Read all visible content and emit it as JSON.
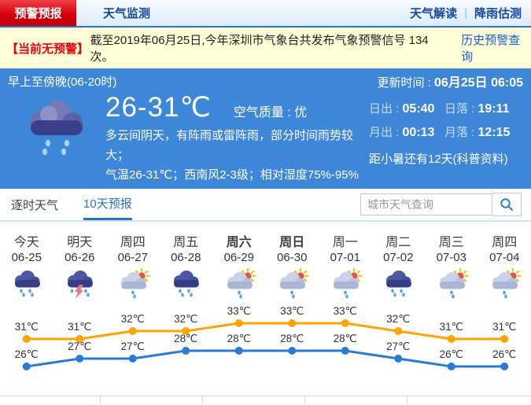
{
  "header": {
    "tabs": [
      {
        "label": "预警预报",
        "active": true
      },
      {
        "label": "天气监测",
        "active": false
      }
    ],
    "links": [
      "天气解读",
      "降雨估测"
    ]
  },
  "alert_banner": {
    "badge": "【当前无预警】",
    "text": "截至2019年06月25日,今年深圳市气象台共发布气象预警信号 134 次。",
    "link": "历史预警查询"
  },
  "current": {
    "period": "早上至傍晚(06-20时)",
    "update_label": "更新时间 : ",
    "update_time": "06月25日 06:05",
    "temp_range": "26-31℃",
    "air_quality": "空气质量 :  优",
    "desc_line1": "多云间阴天，有阵雨或雷阵雨，部分时间雨势较大；",
    "desc_line2": "气温26-31℃；西南风2-3级；相对湿度75%-95%",
    "sun_moon": [
      {
        "label": "日出 : ",
        "value": "05:40"
      },
      {
        "label": "日落 : ",
        "value": "19:11"
      },
      {
        "label": "月出 : ",
        "value": "00:13"
      },
      {
        "label": "月落 : ",
        "value": "12:15"
      }
    ],
    "solar_term_note": "距小暑还有12天(科普资料)"
  },
  "forecast_tabs": {
    "items": [
      {
        "label": "逐时天气",
        "active": false
      },
      {
        "label": "10天预报",
        "active": true
      }
    ]
  },
  "search": {
    "placeholder": "城市天气查询"
  },
  "chart_data": {
    "type": "line",
    "title": "10天预报 temperature trend",
    "unit": "℃",
    "days": [
      {
        "label": "今天",
        "date": "06-25",
        "icon": "rain",
        "bold": false
      },
      {
        "label": "明天",
        "date": "06-26",
        "icon": "thunder-rain",
        "bold": false
      },
      {
        "label": "周四",
        "date": "06-27",
        "icon": "sun-rain",
        "bold": false
      },
      {
        "label": "周五",
        "date": "06-28",
        "icon": "rain",
        "bold": false
      },
      {
        "label": "周六",
        "date": "06-29",
        "icon": "sun-rain",
        "bold": true
      },
      {
        "label": "周日",
        "date": "06-30",
        "icon": "sun-rain",
        "bold": true
      },
      {
        "label": "周一",
        "date": "07-01",
        "icon": "sun-rain",
        "bold": false
      },
      {
        "label": "周二",
        "date": "07-02",
        "icon": "rain",
        "bold": false
      },
      {
        "label": "周三",
        "date": "07-03",
        "icon": "sun-rain",
        "bold": false
      },
      {
        "label": "周四",
        "date": "07-04",
        "icon": "sun-rain",
        "bold": false
      }
    ],
    "series": [
      {
        "name": "high",
        "color": "#ffa400",
        "values": [
          31,
          31,
          32,
          32,
          33,
          33,
          33,
          32,
          31,
          31
        ]
      },
      {
        "name": "low",
        "color": "#2a7bd4",
        "values": [
          26,
          27,
          27,
          28,
          28,
          28,
          28,
          27,
          26,
          26
        ]
      }
    ],
    "colors": {
      "high_line": "#ffa400",
      "low_line": "#2a7bd4",
      "label": "#333333"
    }
  }
}
